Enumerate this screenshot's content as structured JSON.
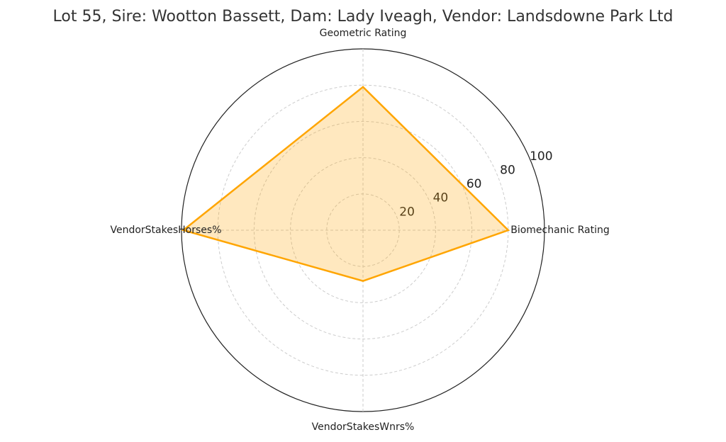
{
  "chart_data": {
    "type": "radar",
    "title": "Lot 55, Sire: Wootton Bassett, Dam: Lady Iveagh, Vendor: Landsdowne Park Ltd",
    "categories": [
      "Biomechanic Rating",
      "Geometric Rating",
      "VendorStakesHorses%",
      "VendorStakesWnrs%"
    ],
    "values": [
      80,
      79,
      99,
      28
    ],
    "color": "#ffa500",
    "ylim": [
      0,
      100
    ],
    "yticks": [
      20,
      40,
      60,
      80,
      100
    ],
    "grid": true
  }
}
